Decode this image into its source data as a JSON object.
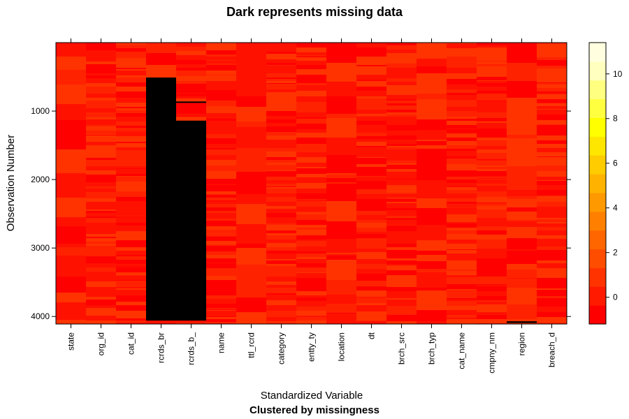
{
  "chart_data": {
    "type": "heatmap",
    "title": "Dark represents missing data",
    "xlabel": "Standardized Variable",
    "subtitle": "Clustered by missingness",
    "ylabel": "Observation Number",
    "n_observations": 4110,
    "y_ticks": [
      1000,
      2000,
      3000,
      4000
    ],
    "columns": [
      "state",
      "org_id",
      "cat_id",
      "rcrds_br",
      "rcrds_b_",
      "name",
      "ttl_rcrd",
      "category",
      "entty_ty",
      "location",
      "dt",
      "brch_src",
      "brch_typ",
      "cat_name",
      "cmpny_nm",
      "region",
      "breach_d"
    ],
    "missing_ranges": [
      {
        "column": "rcrds_br",
        "from": 510,
        "to": 4060
      },
      {
        "column": "rcrds_b_",
        "from": 860,
        "to": 880
      },
      {
        "column": "rcrds_b_",
        "from": 1140,
        "to": 4060
      },
      {
        "column": "region",
        "from": 4070,
        "to": 4095
      }
    ],
    "colorbar": {
      "min": -1.2,
      "max": 11.4,
      "ticks": [
        0,
        2,
        4,
        6,
        8,
        10
      ],
      "colors": [
        "#ff0000",
        "#ff1a00",
        "#ff3300",
        "#ff4d00",
        "#ff6600",
        "#ff8000",
        "#ff9900",
        "#ffb300",
        "#ffcc00",
        "#ffe600",
        "#ffff00",
        "#ffff40",
        "#ffff80",
        "#ffffbf",
        "#ffffe0"
      ]
    }
  }
}
